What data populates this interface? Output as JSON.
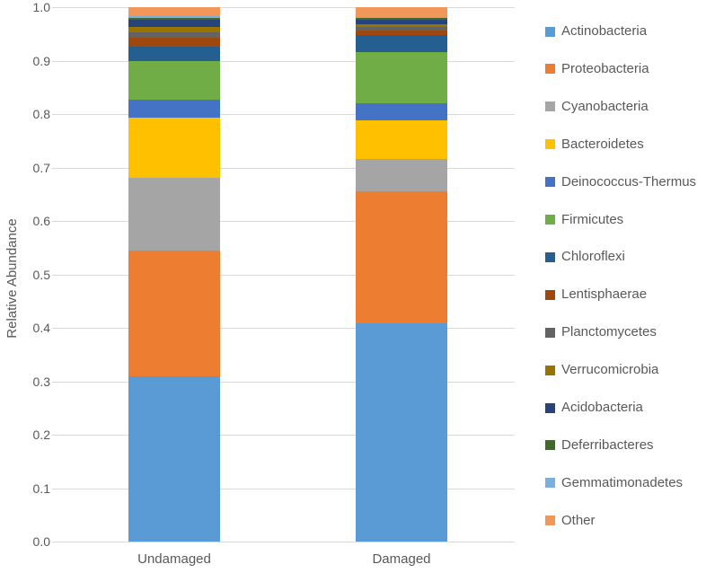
{
  "chart_data": {
    "type": "bar",
    "stacked": true,
    "orientation": "vertical",
    "title": "",
    "xlabel": "",
    "ylabel": "Relative Abundance",
    "ylim": [
      0.0,
      1.0
    ],
    "grid": true,
    "legend_position": "right",
    "categories": [
      "Undamaged",
      "Damaged"
    ],
    "yticks": {
      "values": [
        0.0,
        0.1,
        0.2,
        0.3,
        0.4,
        0.5,
        0.6,
        0.7,
        0.8,
        0.9,
        1.0
      ],
      "labels": [
        "0.0",
        "0.1",
        "0.2",
        "0.3",
        "0.4",
        "0.5",
        "0.6",
        "0.7",
        "0.8",
        "0.9",
        "1.0"
      ]
    },
    "series": [
      {
        "name": "Actinobacteria",
        "color": "#5B9BD5",
        "values": [
          0.309,
          0.408
        ]
      },
      {
        "name": "Proteobacteria",
        "color": "#ED7D31",
        "values": [
          0.235,
          0.247
        ]
      },
      {
        "name": "Cyanobacteria",
        "color": "#A5A5A5",
        "values": [
          0.136,
          0.061
        ]
      },
      {
        "name": "Bacteroidetes",
        "color": "#FFC000",
        "values": [
          0.113,
          0.072
        ]
      },
      {
        "name": "Deinococcus-Thermus",
        "color": "#4472C4",
        "values": [
          0.034,
          0.032
        ]
      },
      {
        "name": "Firmicutes",
        "color": "#70AD47",
        "values": [
          0.072,
          0.096
        ]
      },
      {
        "name": "Chloroflexi",
        "color": "#255E91",
        "values": [
          0.027,
          0.032
        ]
      },
      {
        "name": "Lentisphaerae",
        "color": "#9E480E",
        "values": [
          0.017,
          0.008
        ]
      },
      {
        "name": "Planctomycetes",
        "color": "#636363",
        "values": [
          0.01,
          0.007
        ]
      },
      {
        "name": "Verrucomicrobia",
        "color": "#997300",
        "values": [
          0.01,
          0.005
        ]
      },
      {
        "name": "Acidobacteria",
        "color": "#264478",
        "values": [
          0.014,
          0.009
        ]
      },
      {
        "name": "Deferribacteres",
        "color": "#43682B",
        "values": [
          0.003,
          0.003
        ]
      },
      {
        "name": "Gemmatimonadetes",
        "color": "#7CAFDD",
        "values": [
          0.003,
          0.002
        ]
      },
      {
        "name": "Other",
        "color": "#F1975A",
        "values": [
          0.017,
          0.018
        ]
      }
    ]
  }
}
